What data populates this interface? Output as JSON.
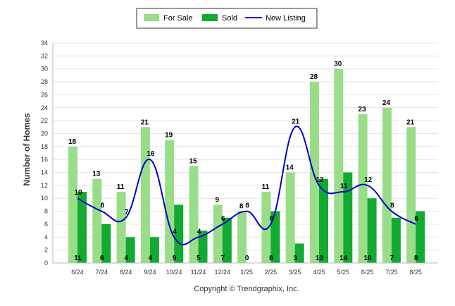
{
  "chart_data": {
    "type": "bar",
    "categories": [
      "6/24",
      "7/24",
      "8/24",
      "9/24",
      "10/24",
      "11/24",
      "12/24",
      "1/25",
      "2/25",
      "3/25",
      "4/25",
      "5/25",
      "6/25",
      "7/25",
      "8/25"
    ],
    "series": [
      {
        "name": "For Sale",
        "type": "bar",
        "color": "#99dd88",
        "values": [
          18,
          13,
          11,
          21,
          19,
          15,
          9,
          8,
          11,
          14,
          28,
          30,
          23,
          24,
          21
        ]
      },
      {
        "name": "Sold",
        "type": "bar",
        "color": "#11aa33",
        "values": [
          11,
          6,
          4,
          4,
          9,
          5,
          7,
          0,
          8,
          3,
          13,
          14,
          10,
          7,
          8
        ]
      },
      {
        "name": "New Listing",
        "type": "line",
        "color": "#0000cc",
        "values": [
          10,
          8,
          7,
          16,
          4,
          4,
          6,
          8,
          6,
          21,
          12,
          11,
          12,
          8,
          6
        ]
      }
    ],
    "ylabel": "Number of Homes",
    "xlabel": "",
    "ylim": [
      0,
      34
    ],
    "ytick_step": 2,
    "grid": true,
    "legend_position": "top-center"
  },
  "footer": {
    "copyright": "Copyright © Trendgraphix, Inc."
  }
}
